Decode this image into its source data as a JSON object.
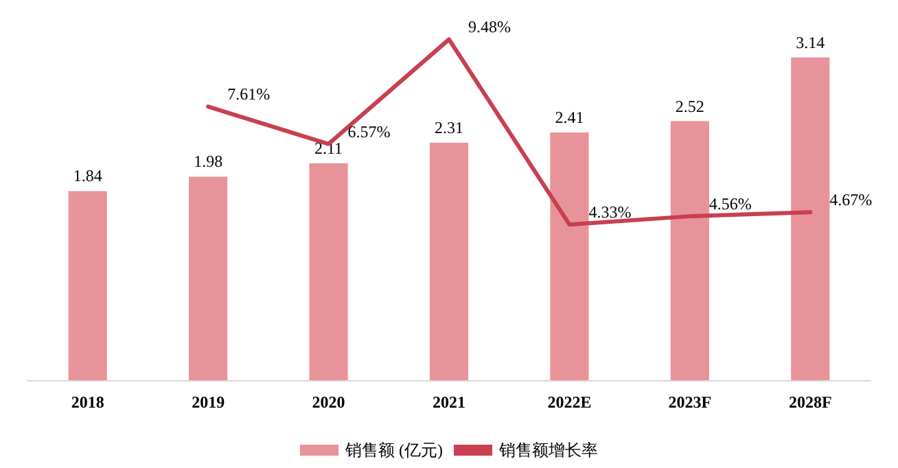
{
  "chart_data": {
    "type": "bar",
    "categories": [
      "2018",
      "2019",
      "2020",
      "2021",
      "2022E",
      "2023F",
      "2028F"
    ],
    "series": [
      {
        "name": "销售额 (亿元)",
        "color": "#e8939a",
        "values": [
          1.84,
          1.98,
          2.11,
          2.31,
          2.41,
          2.52,
          3.14
        ]
      },
      {
        "name": "销售额增长率",
        "type": "line",
        "axis": "y2",
        "color": "#c8404f",
        "values": [
          null,
          7.61,
          6.57,
          9.48,
          4.33,
          4.56,
          4.67
        ],
        "value_labels": [
          null,
          "7.61%",
          "6.57%",
          "9.48%",
          "4.33%",
          "4.56%",
          "4.67%"
        ]
      }
    ],
    "data_labels": true,
    "legend": "bottom",
    "marker": "none",
    "line_style": "solid",
    "grid": false,
    "tick_labels": "x"
  }
}
